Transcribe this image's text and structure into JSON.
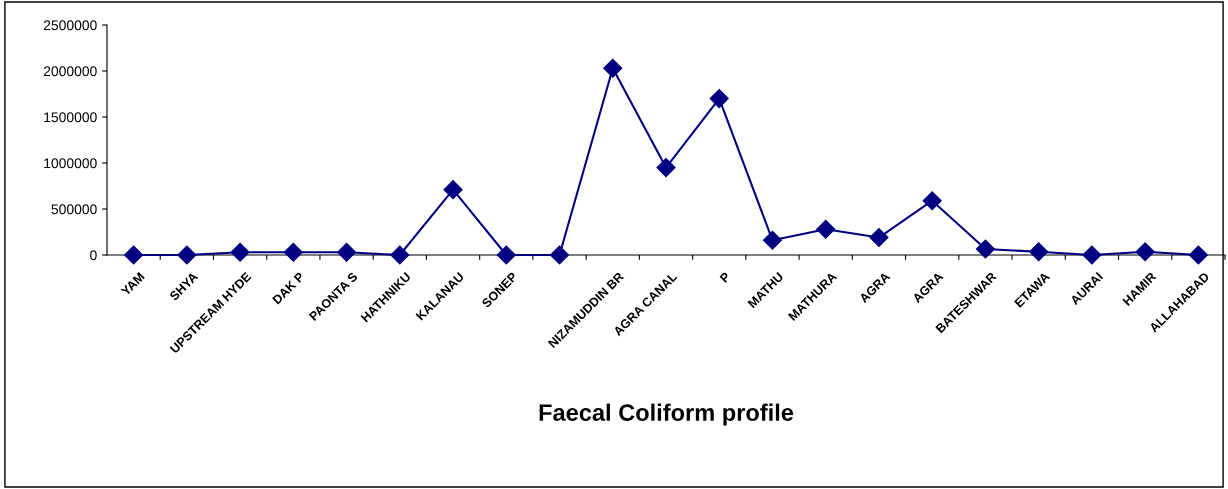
{
  "chart_data": {
    "type": "line",
    "xlabel": "Faecal Coliform profile",
    "categories": [
      "YAM",
      "SHYA",
      "UPSTREAM HYDE",
      "DAK P",
      "PAONTA S",
      "HATHNIKU",
      "KALANAU",
      "SONEP",
      null,
      "NIZAMUDDIN BR",
      "AGRA CANAL",
      "P",
      "MATHU",
      "MATHURA",
      "AGRA",
      "AGRA",
      "BATESHWAR",
      "ETAWA",
      "AURAI",
      "HAMIR",
      "ALLAHABAD"
    ],
    "series": [
      {
        "color": "#000080",
        "values": [
          0,
          0,
          30000,
          30000,
          30000,
          0,
          710000,
          0,
          0,
          2030000,
          950000,
          1700000,
          160000,
          280000,
          190000,
          590000,
          65000,
          35000,
          0,
          35000,
          0
        ]
      }
    ],
    "ylim": [
      0,
      2500000
    ],
    "yticks": [
      0,
      500000,
      1000000,
      1500000,
      2000000,
      2500000
    ],
    "grid": false,
    "legend": false,
    "marker": "diamond",
    "line_style": "solid"
  }
}
